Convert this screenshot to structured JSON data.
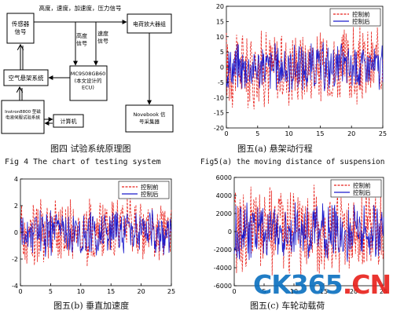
{
  "colors": {
    "before_series": "#e8201a",
    "after_series": "#1a1acc",
    "watermark_blue": "#0a6fbf",
    "watermark_red": "#e8201a"
  },
  "diagram": {
    "nodes": {
      "sensor": "传感器\n信号",
      "amplifier": "电荷放大器组",
      "air_susp": "空气悬架系统",
      "ecu": "MC9S08GB60\n(本文设计的\nECU)",
      "bench": "Instron8800 型磁\n电液伺服试验系统",
      "computer": "计算机",
      "novebook": "Novebook 信\n号采集器"
    },
    "edges": {
      "top_signals": "高度，速度，加速度，压力信号",
      "height_signal": "高度\n信号",
      "speed_signal": "速度\n信号"
    }
  },
  "captions": {
    "fig4_cn": "图四 试验系统原理图",
    "fig4_en": "Fig 4 The chart of testing system",
    "fig5a_cn": "图五(a) 悬架动行程",
    "fig5a_en": "Fig5(a) the moving distance of suspension",
    "fig5b_cn": "图五(b) 垂直加速度",
    "fig5c_cn": "图五(c) 车轮动载荷"
  },
  "watermark": {
    "main": "CK365",
    "dot": ".",
    "suffix": "CN"
  },
  "chart_data": [
    {
      "type": "line",
      "x": [
        0,
        25
      ],
      "xlim": [
        0,
        25
      ],
      "ylim": [
        -20,
        20
      ],
      "xticks": [
        "0",
        "5",
        "10",
        "15",
        "20",
        "25"
      ],
      "yticks": [
        "20",
        "15",
        "10",
        "5",
        "0",
        "-5",
        "-10",
        "-15",
        "-20"
      ],
      "legend_position": "top-right",
      "series": [
        {
          "name": "控制前",
          "color": "#e8201a",
          "style": "dashed",
          "amplitude": 15
        },
        {
          "name": "控制后",
          "color": "#1a1acc",
          "style": "solid",
          "amplitude": 9
        }
      ]
    },
    {
      "type": "line",
      "xlim": [
        0,
        25
      ],
      "ylim": [
        -4,
        4
      ],
      "xticks": [
        "0",
        "5",
        "10",
        "15",
        "20",
        "25"
      ],
      "yticks": [
        "4",
        "2",
        "0",
        "-2",
        "-4"
      ],
      "legend_position": "top-right",
      "series": [
        {
          "name": "控制前",
          "color": "#e8201a",
          "style": "dashed",
          "amplitude": 2.9
        },
        {
          "name": "控制后",
          "color": "#1a1acc",
          "style": "solid",
          "amplitude": 2.0
        }
      ]
    },
    {
      "type": "line",
      "xlim": [
        0,
        25
      ],
      "ylim": [
        -6000,
        6000
      ],
      "xticks": [
        "0",
        "5",
        "10",
        "15",
        "20",
        "25"
      ],
      "yticks": [
        "6000",
        "4000",
        "2000",
        "0",
        "-2000",
        "-4000",
        "-6000"
      ],
      "legend_position": "top-right",
      "series": [
        {
          "name": "控制前",
          "color": "#e8201a",
          "style": "dashed",
          "amplitude": 5500
        },
        {
          "name": "控制后",
          "color": "#1a1acc",
          "style": "solid",
          "amplitude": 3800
        }
      ]
    }
  ]
}
